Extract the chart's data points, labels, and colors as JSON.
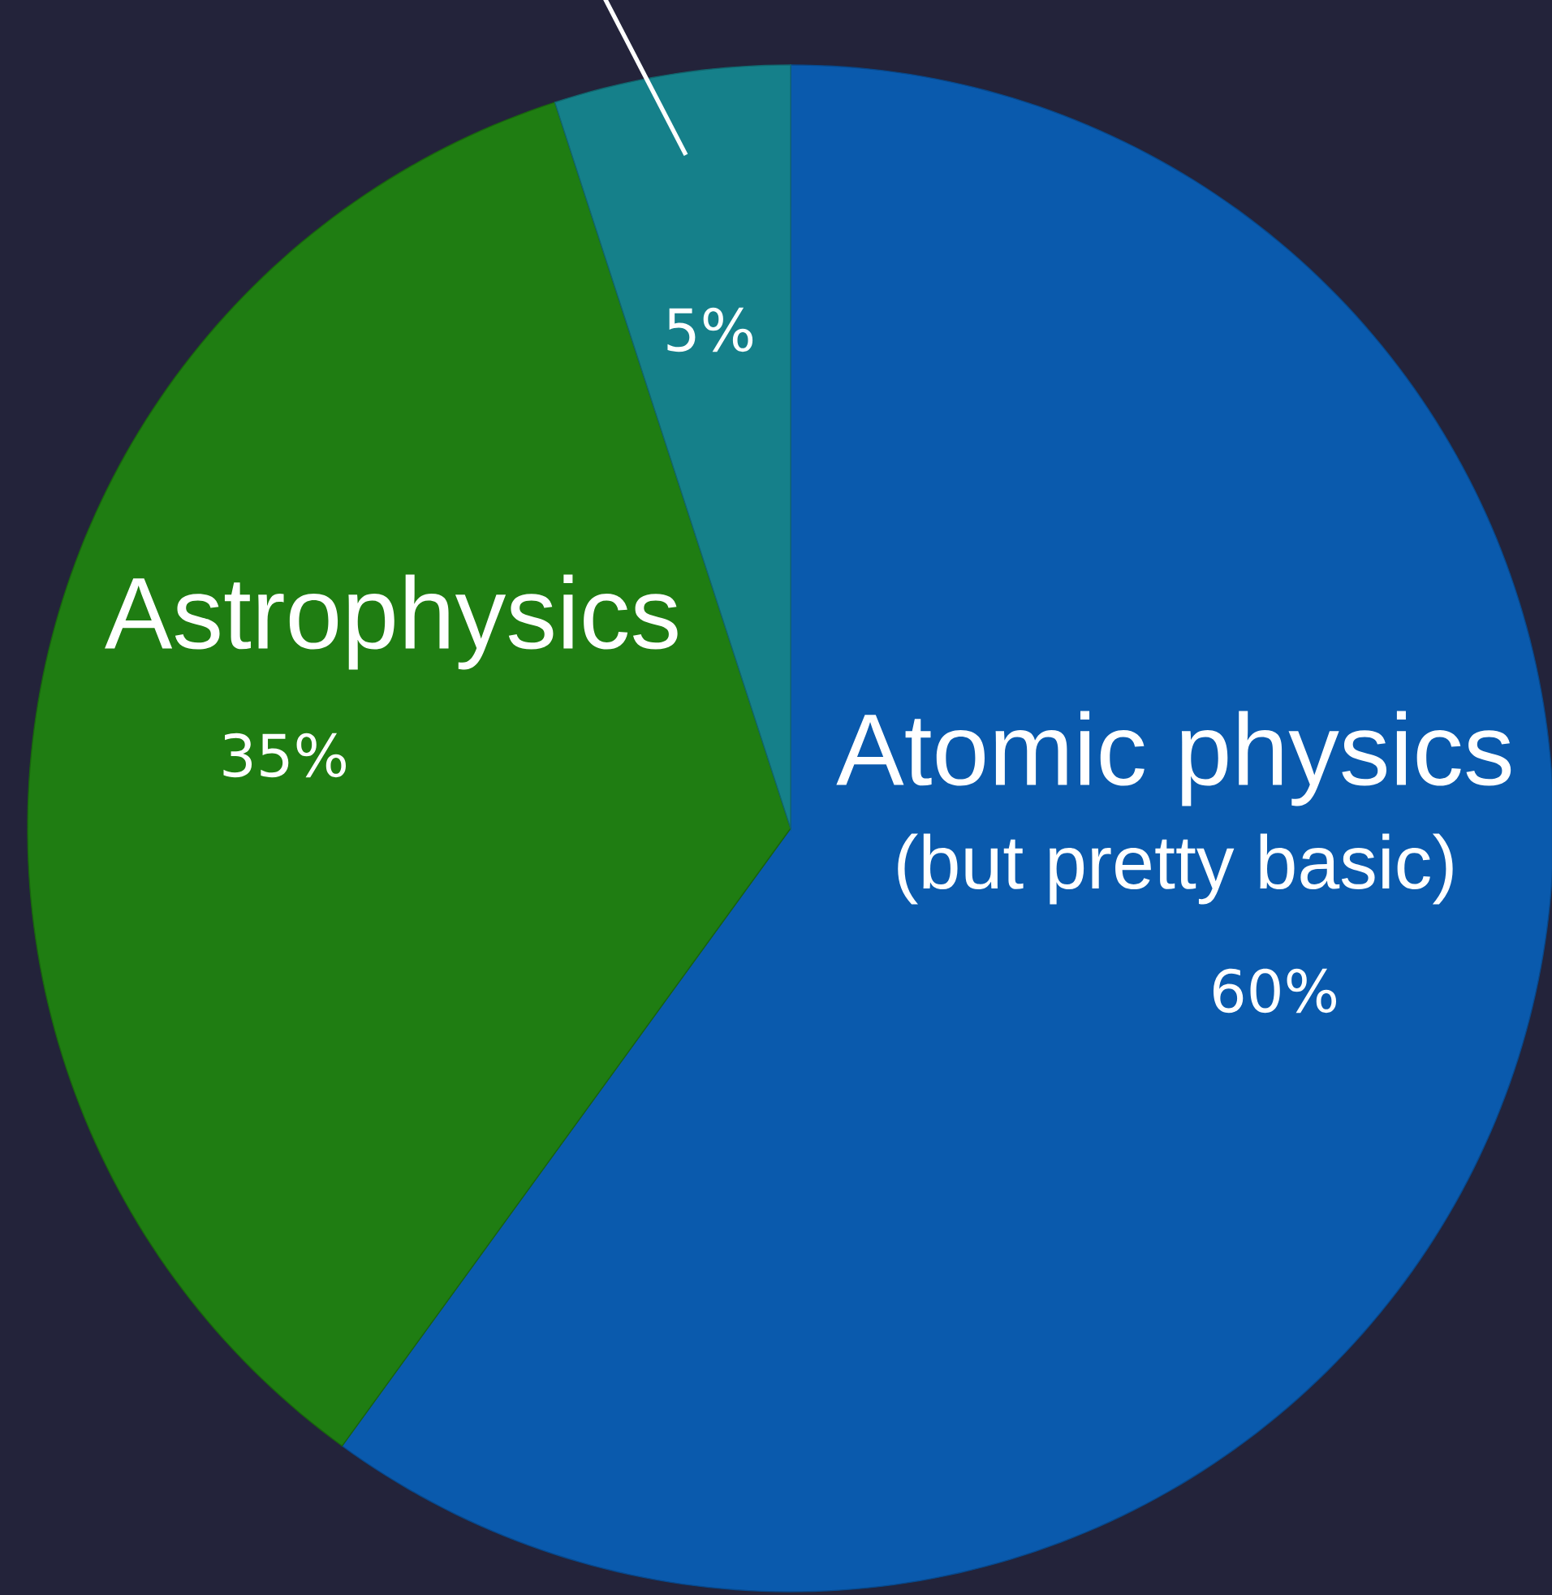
{
  "chart_data": {
    "type": "pie",
    "categories": [
      "Atomic physics",
      "Astrophysics",
      null
    ],
    "values": [
      60,
      35,
      5
    ],
    "colors": [
      "#0a5aad",
      "#1f7d12",
      "#15808a"
    ],
    "value_labels": [
      "60%",
      "35%",
      "5%"
    ],
    "annotations": [
      "(but pretty basic)"
    ]
  }
}
